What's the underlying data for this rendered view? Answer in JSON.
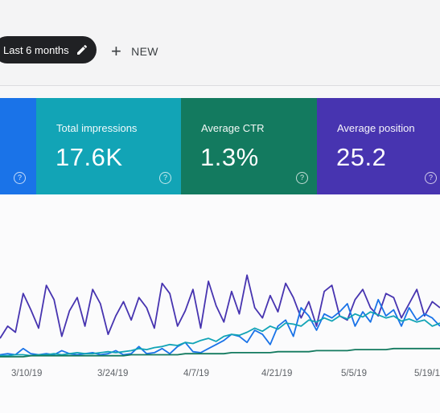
{
  "toolbar": {
    "date_chip_label": "Last 6 months",
    "new_label": "NEW"
  },
  "icons": {
    "chip": "pencil-icon",
    "new": "plus-icon",
    "help": "help-circle-icon"
  },
  "colors": {
    "clicks": "#1a73e8",
    "impressions": "#12a4b6",
    "ctr": "#137a5f",
    "position": "#4734b0"
  },
  "cards": [
    {
      "title": "",
      "value": ""
    },
    {
      "title": "Total impressions",
      "value": "17.6K"
    },
    {
      "title": "Average CTR",
      "value": "1.3%"
    },
    {
      "title": "Average position",
      "value": "25.2"
    }
  ],
  "chart_data": {
    "type": "line",
    "x_tick_labels": [
      "3/10/19",
      "3/24/19",
      "4/7/19",
      "4/21/19",
      "5/5/19",
      "5/19/1"
    ],
    "series": [
      {
        "color": "#4734b0",
        "values": [
          18,
          30,
          24,
          62,
          46,
          28,
          70,
          56,
          20,
          45,
          58,
          30,
          66,
          52,
          22,
          40,
          54,
          36,
          58,
          48,
          28,
          72,
          62,
          30,
          45,
          66,
          28,
          74,
          50,
          34,
          64,
          42,
          80,
          48,
          38,
          60,
          44,
          72,
          58,
          38,
          54,
          30,
          64,
          70,
          40,
          36,
          56,
          66,
          48,
          40,
          62,
          58,
          38,
          52,
          66,
          40,
          54,
          48
        ]
      },
      {
        "color": "#1a73e8",
        "values": [
          2,
          3,
          2,
          8,
          3,
          2,
          3,
          2,
          6,
          3,
          2,
          3,
          4,
          2,
          3,
          6,
          2,
          3,
          10,
          3,
          4,
          8,
          3,
          10,
          14,
          5,
          4,
          8,
          12,
          16,
          22,
          20,
          14,
          26,
          22,
          12,
          30,
          36,
          20,
          48,
          40,
          26,
          42,
          38,
          44,
          52,
          30,
          44,
          34,
          56,
          40,
          46,
          30,
          48,
          36,
          42,
          38,
          30
        ]
      },
      {
        "color": "#12a4b6",
        "values": [
          1,
          1,
          2,
          2,
          1,
          2,
          2,
          3,
          2,
          3,
          4,
          3,
          3,
          4,
          5,
          4,
          5,
          6,
          8,
          7,
          9,
          10,
          12,
          11,
          14,
          13,
          16,
          18,
          15,
          20,
          22,
          21,
          24,
          28,
          25,
          30,
          27,
          33,
          32,
          30,
          36,
          34,
          38,
          35,
          40,
          37,
          42,
          39,
          44,
          41,
          38,
          40,
          35,
          37,
          34,
          36,
          30,
          33
        ]
      },
      {
        "color": "#137a5f",
        "values": [
          0,
          0,
          0,
          0,
          1,
          1,
          1,
          1,
          1,
          1,
          1,
          1,
          1,
          1,
          1,
          1,
          1,
          2,
          2,
          2,
          2,
          2,
          2,
          2,
          3,
          3,
          3,
          3,
          3,
          3,
          4,
          4,
          4,
          4,
          4,
          4,
          5,
          5,
          5,
          5,
          5,
          6,
          6,
          6,
          6,
          6,
          7,
          7,
          7,
          7,
          7,
          8,
          8,
          8,
          8,
          8,
          8,
          8
        ]
      }
    ],
    "ylim": [
      0,
      100
    ],
    "grid": false
  }
}
